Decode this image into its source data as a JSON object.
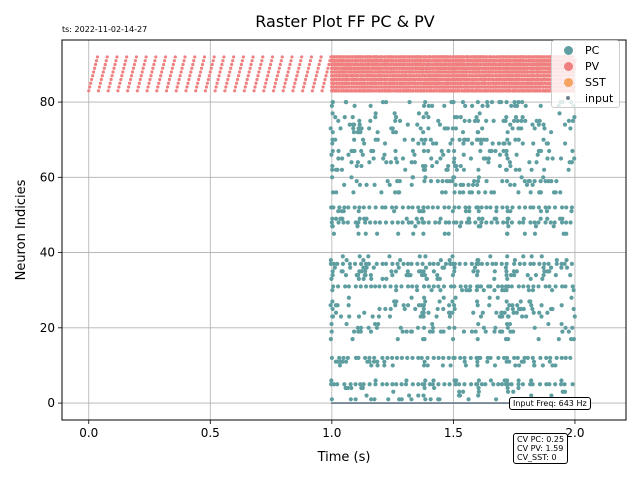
{
  "timestamp": "ts: 2022-11-02-14-27",
  "chart_data": {
    "type": "scatter",
    "title": "Raster Plot FF PC & PV",
    "xlabel": "Time (s)",
    "ylabel": "Neuron Indicies",
    "xlim": [
      -0.11,
      2.21
    ],
    "ylim": [
      -4.5,
      96.5
    ],
    "xticks": [
      0.0,
      0.5,
      1.0,
      1.5,
      2.0
    ],
    "xtick_labels": [
      "0.0",
      "0.5",
      "1.0",
      "1.5",
      "2.0"
    ],
    "yticks": [
      0,
      20,
      40,
      60,
      80
    ],
    "ytick_labels": [
      "0",
      "20",
      "40",
      "60",
      "80"
    ],
    "grid": true,
    "legend_position": "top-right",
    "series": [
      {
        "name": "PC",
        "color": "#5f9ea0",
        "marker_size": "large",
        "neurons": [
          1,
          2,
          3,
          4,
          5,
          6,
          10,
          11,
          12,
          17,
          19,
          20,
          21,
          23,
          24,
          25,
          26,
          27,
          28,
          30,
          31,
          33,
          34,
          35,
          36,
          37,
          38,
          39,
          45,
          47,
          48,
          49,
          51,
          52,
          56,
          58,
          59,
          60,
          62,
          63,
          64,
          65,
          66,
          67,
          69,
          70,
          72,
          73,
          74,
          75,
          76,
          77,
          79,
          80
        ],
        "t_start": 1.0,
        "t_end": 2.0,
        "notes": "sparse irregular spiking; neurons 5,12,31,37,48,52 fire densely"
      },
      {
        "name": "PV",
        "color": "#f08080",
        "marker_size": "small",
        "neurons_range": [
          83,
          92
        ],
        "t_start": 0.0,
        "t_end": 2.0,
        "baseline_interval_s": 0.04,
        "evoked_start": 1.0,
        "notes": "regular diagonal firing pattern before 1.0 s; dense after input onset"
      },
      {
        "name": "SST",
        "color": "#f4a460",
        "neurons": [],
        "notes": "no spikes"
      },
      {
        "name": "input",
        "color": "#708090",
        "marker_size": "tiny",
        "neuron": 0,
        "t_start": 1.0,
        "t_end": 2.0,
        "notes": "dense input train at index 0"
      }
    ],
    "annotations": [
      {
        "text": "Input Freq: 643 Hz"
      },
      {
        "lines": [
          "CV PC: 0.25",
          "CV PV: 1.59",
          "CV_SST: 0"
        ]
      }
    ]
  }
}
